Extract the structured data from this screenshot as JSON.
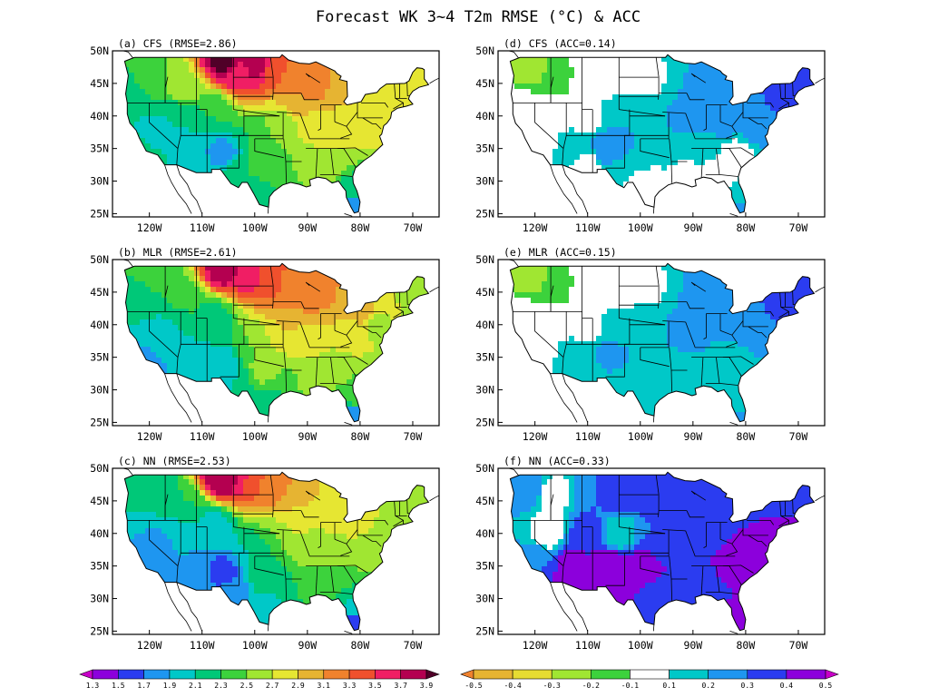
{
  "title": "Forecast WK 3~4 T2m RMSE (°C) & ACC",
  "lat_labels": [
    "50N",
    "45N",
    "40N",
    "35N",
    "30N",
    "25N"
  ],
  "lon_labels": [
    "120W",
    "110W",
    "100W",
    "90W",
    "80W",
    "70W"
  ],
  "panels": [
    {
      "id": "a",
      "label": "(a) CFS (RMSE=2.86)",
      "field": "rmse",
      "model": "CFS"
    },
    {
      "id": "d",
      "label": "(d) CFS (ACC=0.14)",
      "field": "acc",
      "model": "CFS"
    },
    {
      "id": "b",
      "label": "(b) MLR (RMSE=2.61)",
      "field": "rmse",
      "model": "MLR"
    },
    {
      "id": "e",
      "label": "(e) MLR (ACC=0.15)",
      "field": "acc",
      "model": "MLR"
    },
    {
      "id": "c",
      "label": "(c) NN (RMSE=2.53)",
      "field": "rmse",
      "model": "NN"
    },
    {
      "id": "f",
      "label": "(f) NN (ACC=0.33)",
      "field": "acc",
      "model": "NN"
    }
  ],
  "rmse_scale": {
    "ticks": [
      "1.3",
      "1.5",
      "1.7",
      "1.9",
      "2.1",
      "2.3",
      "2.5",
      "2.7",
      "2.9",
      "3.1",
      "3.3",
      "3.5",
      "3.7",
      "3.9"
    ],
    "colors": [
      "#c800c8",
      "#8c00dc",
      "#2b3cf0",
      "#1e96f0",
      "#00c8c8",
      "#00c878",
      "#3cd23c",
      "#a0e632",
      "#e6e632",
      "#e6b432",
      "#f0822d",
      "#f0502d",
      "#f01e64",
      "#b40050",
      "#500028"
    ]
  },
  "acc_scale": {
    "ticks": [
      "-0.5",
      "-0.4",
      "-0.3",
      "-0.2",
      "-0.1",
      "0.1",
      "0.2",
      "0.3",
      "0.4",
      "0.5"
    ],
    "colors": [
      "#f0822d",
      "#e6b432",
      "#e6dc32",
      "#a0e632",
      "#3cd23c",
      "#ffffff",
      "#00c8c8",
      "#1e96f0",
      "#2b3cf0",
      "#8c00dc",
      "#c800c8"
    ]
  }
}
